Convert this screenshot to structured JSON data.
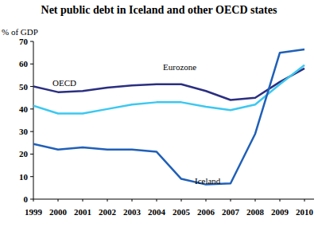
{
  "chart_data": {
    "type": "line",
    "title": "Net public debt in Iceland and other OECD states",
    "y_label": "% of GDP",
    "categories": [
      "1999",
      "2000",
      "2001",
      "2002",
      "2003",
      "2004",
      "2005",
      "2006",
      "2007",
      "2008",
      "2009",
      "2010"
    ],
    "series": [
      {
        "name": "Eurozone",
        "color": "#2b2f80",
        "values": [
          50,
          47.5,
          48,
          49.5,
          50.5,
          51,
          51,
          48,
          44,
          45,
          52,
          58
        ]
      },
      {
        "name": "OECD",
        "color": "#3cc8f0",
        "values": [
          41.5,
          38,
          38,
          40,
          42,
          43,
          43,
          41,
          39.5,
          42,
          51,
          59.5
        ]
      },
      {
        "name": "Iceland",
        "color": "#2060b8",
        "values": [
          24.5,
          22,
          23,
          22,
          22,
          21,
          9,
          6.5,
          7,
          29,
          65,
          66.5
        ]
      }
    ],
    "ylim": [
      0,
      70
    ],
    "yticks": [
      0,
      10,
      20,
      30,
      40,
      50,
      60,
      70
    ],
    "grid": false
  }
}
